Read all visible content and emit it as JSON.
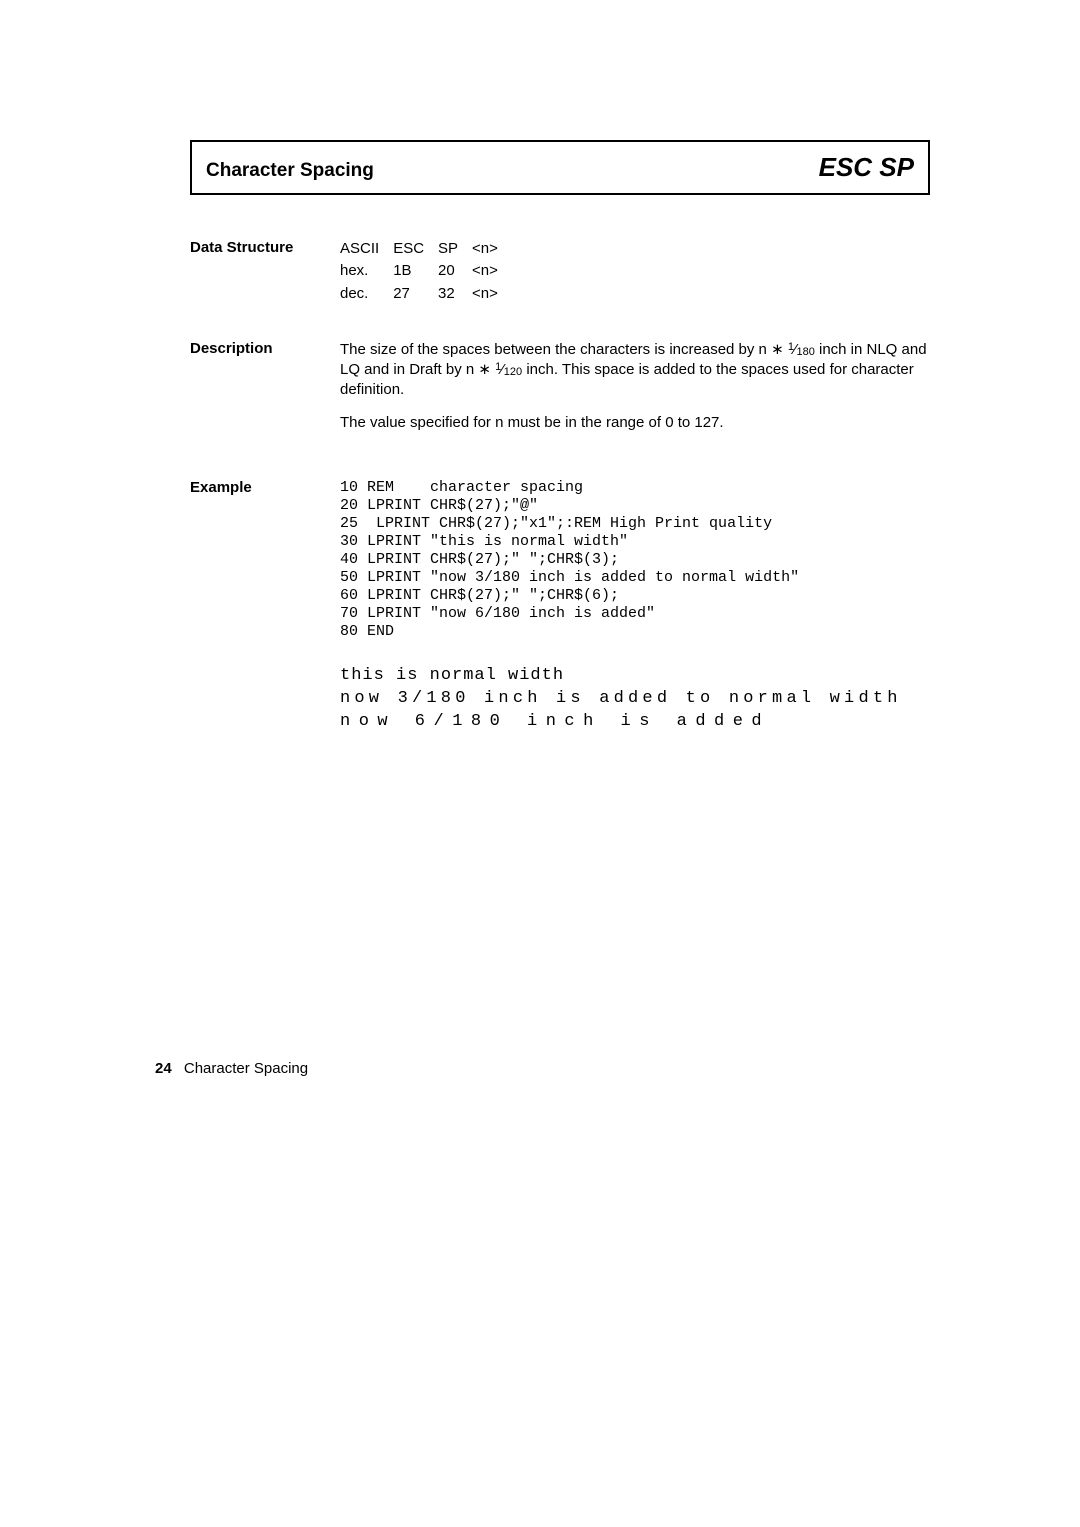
{
  "title": {
    "left": "Character Spacing",
    "right": "ESC SP"
  },
  "dataStructure": {
    "label": "Data Structure",
    "rows": [
      {
        "c1": "ASCII",
        "c2": "ESC",
        "c3": "SP",
        "c4": "<n>"
      },
      {
        "c1": "hex.",
        "c2": "1B",
        "c3": "20",
        "c4": "<n>"
      },
      {
        "c1": "dec.",
        "c2": "27",
        "c3": "32",
        "c4": "<n>"
      }
    ]
  },
  "description": {
    "label": "Description",
    "p1_a": "The size of the spaces between the characters is increased by n ∗ ",
    "p1_frac_num": "1",
    "p1_frac_slash": "⁄",
    "p1_frac_den": "180",
    "p1_b": " inch in NLQ and LQ and in Draft by n ∗ ",
    "p1_frac2_num": "1",
    "p1_frac2_slash": "⁄",
    "p1_frac2_den": "120",
    "p1_c": " inch. This space is added to the spaces used for character definition.",
    "p2": "The value specified for n must be in the range of 0 to 127."
  },
  "example": {
    "label": "Example",
    "code": "10 REM    character spacing\n20 LPRINT CHR$(27);\"@\"\n25  LPRINT CHR$(27);\"x1\";:REM High Print quality\n30 LPRINT \"this is normal width\"\n40 LPRINT CHR$(27);\" \";CHR$(3);\n50 LPRINT \"now 3/180 inch is added to normal width\"\n60 LPRINT CHR$(27);\" \";CHR$(6);\n70 LPRINT \"now 6/180 inch is added\"\n80 END",
    "out1": "this is normal width",
    "out2": "now 3/180 inch is added to normal width",
    "out3": "now 6/180 inch is added"
  },
  "footer": {
    "page": "24",
    "text": "Character Spacing"
  }
}
